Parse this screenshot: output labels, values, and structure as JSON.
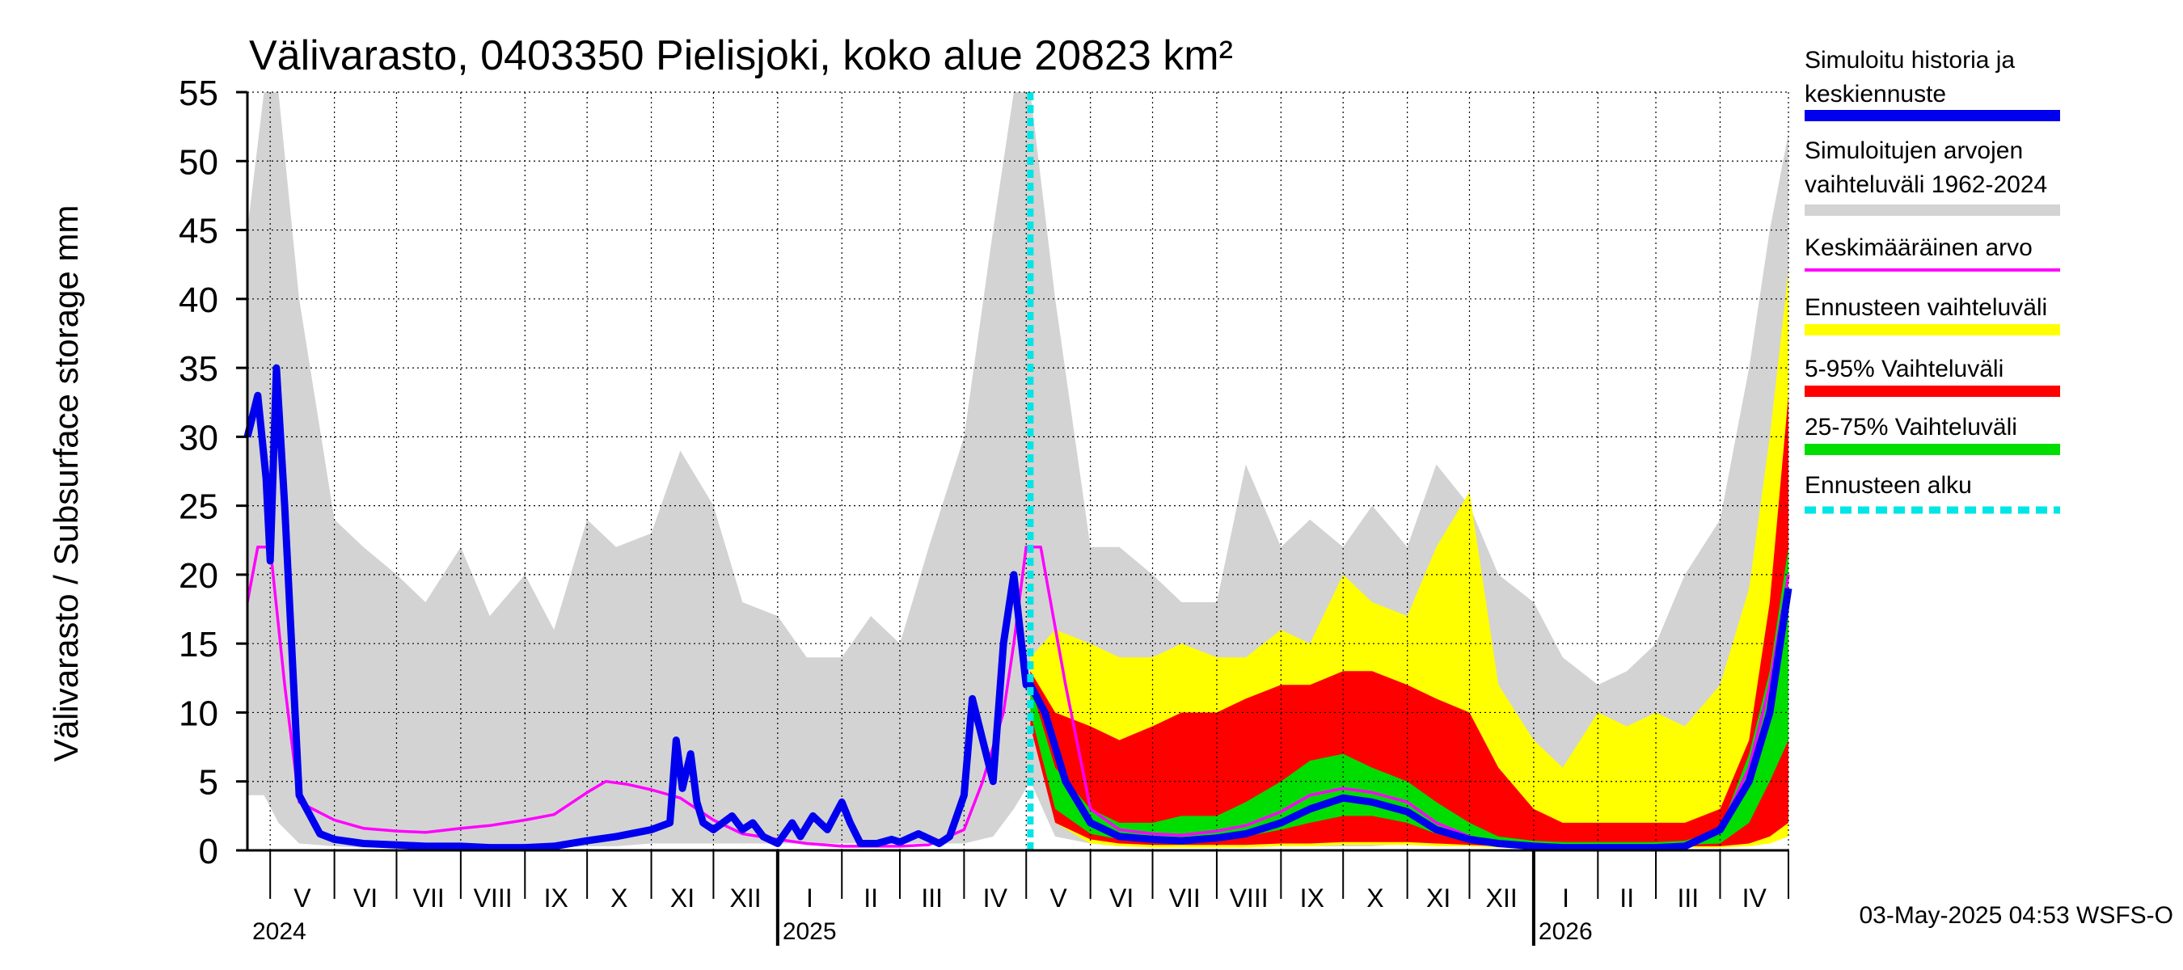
{
  "chart_data": {
    "type": "area",
    "title": "Välivarasto, 0403350 Pielisjoki, koko alue 20823 km²",
    "ylabel": "Välivarasto / Subsurface storage  mm",
    "ylim": [
      0,
      55
    ],
    "yticks": [
      "0",
      "5",
      "10",
      "15",
      "20",
      "25",
      "30",
      "35",
      "40",
      "45",
      "50",
      "55"
    ],
    "grid": true,
    "x_range": [
      "2024-04-20",
      "2026-05-04"
    ],
    "forecast_start": "2025-05-03",
    "months": [
      {
        "label": "V",
        "start": "2024-05-01"
      },
      {
        "label": "VI",
        "start": "2024-06-01"
      },
      {
        "label": "VII",
        "start": "2024-07-01"
      },
      {
        "label": "VIII",
        "start": "2024-08-01"
      },
      {
        "label": "IX",
        "start": "2024-09-01"
      },
      {
        "label": "X",
        "start": "2024-10-01"
      },
      {
        "label": "XI",
        "start": "2024-11-01"
      },
      {
        "label": "XII",
        "start": "2024-12-01"
      },
      {
        "label": "I",
        "start": "2025-01-01"
      },
      {
        "label": "II",
        "start": "2025-02-01"
      },
      {
        "label": "III",
        "start": "2025-03-01"
      },
      {
        "label": "IV",
        "start": "2025-04-01"
      },
      {
        "label": "V",
        "start": "2025-05-01"
      },
      {
        "label": "VI",
        "start": "2025-06-01"
      },
      {
        "label": "VII",
        "start": "2025-07-01"
      },
      {
        "label": "VIII",
        "start": "2025-08-01"
      },
      {
        "label": "IX",
        "start": "2025-09-01"
      },
      {
        "label": "X",
        "start": "2025-10-01"
      },
      {
        "label": "XI",
        "start": "2025-11-01"
      },
      {
        "label": "XII",
        "start": "2025-12-01"
      },
      {
        "label": "I",
        "start": "2026-01-01"
      },
      {
        "label": "II",
        "start": "2026-02-01"
      },
      {
        "label": "III",
        "start": "2026-03-01"
      },
      {
        "label": "IV",
        "start": "2026-04-01"
      }
    ],
    "years": [
      {
        "label": "2024",
        "date": "2024-04-20"
      },
      {
        "label": "2025",
        "date": "2025-01-01"
      },
      {
        "label": "2026",
        "date": "2026-01-01"
      }
    ],
    "series": [
      {
        "name": "Simuloitujen arvojen vaihteluväli 1962-2024",
        "role": "hist_range",
        "color": "#d3d3d3",
        "x": [
          "2024-04-20",
          "2024-04-28",
          "2024-05-05",
          "2024-05-15",
          "2024-06-01",
          "2024-06-15",
          "2024-07-01",
          "2024-07-15",
          "2024-08-01",
          "2024-08-15",
          "2024-09-01",
          "2024-09-15",
          "2024-10-01",
          "2024-10-15",
          "2024-11-01",
          "2024-11-15",
          "2024-12-01",
          "2024-12-15",
          "2025-01-01",
          "2025-01-15",
          "2025-02-01",
          "2025-02-15",
          "2025-03-01",
          "2025-03-15",
          "2025-04-01",
          "2025-04-15",
          "2025-04-25",
          "2025-05-03",
          "2025-05-15",
          "2025-06-01",
          "2025-06-15",
          "2025-07-01",
          "2025-07-15",
          "2025-08-01",
          "2025-08-15",
          "2025-09-01",
          "2025-09-15",
          "2025-10-01",
          "2025-10-15",
          "2025-11-01",
          "2025-11-15",
          "2025-12-01",
          "2025-12-15",
          "2026-01-01",
          "2026-01-15",
          "2026-02-01",
          "2026-02-15",
          "2026-03-01",
          "2026-03-15",
          "2026-04-01",
          "2026-04-15",
          "2026-04-25",
          "2026-05-04"
        ],
        "lower": [
          4,
          4,
          2,
          0.5,
          0.3,
          0.2,
          0.2,
          0.2,
          0.2,
          0.2,
          0.2,
          0.2,
          0.3,
          0.3,
          0.5,
          0.5,
          0.5,
          0.5,
          0.5,
          0.5,
          0.5,
          0.5,
          0.5,
          0.5,
          0.5,
          1,
          3,
          5,
          1,
          0.5,
          0.3,
          0.3,
          0.3,
          0.3,
          0.3,
          0.3,
          0.3,
          0.3,
          0.3,
          0.5,
          0.5,
          0.5,
          0.5,
          0.5,
          0.5,
          0.5,
          0.5,
          0.5,
          0.5,
          0.5,
          1,
          3,
          5
        ],
        "upper": [
          45,
          55,
          55,
          40,
          24,
          22,
          20,
          18,
          22,
          17,
          20,
          16,
          24,
          22,
          23,
          29,
          25,
          18,
          17,
          14,
          14,
          17,
          15,
          22,
          30,
          45,
          55,
          55,
          40,
          22,
          22,
          20,
          18,
          18,
          28,
          22,
          24,
          22,
          25,
          22,
          28,
          25,
          20,
          18,
          14,
          12,
          13,
          15,
          20,
          24,
          35,
          45,
          52
        ]
      },
      {
        "name": "Ennusteen vaihteluväli",
        "role": "forecast_range",
        "color": "#ffff00",
        "x": [
          "2025-05-03",
          "2025-05-15",
          "2025-06-01",
          "2025-06-15",
          "2025-07-01",
          "2025-07-15",
          "2025-08-01",
          "2025-08-15",
          "2025-09-01",
          "2025-09-15",
          "2025-10-01",
          "2025-10-15",
          "2025-11-01",
          "2025-11-15",
          "2025-12-01",
          "2025-12-15",
          "2026-01-01",
          "2026-01-15",
          "2026-02-01",
          "2026-02-15",
          "2026-03-01",
          "2026-03-15",
          "2026-04-01",
          "2026-04-15",
          "2026-04-25",
          "2026-05-04"
        ],
        "lower": [
          10,
          2,
          0.5,
          0.3,
          0.2,
          0.2,
          0.2,
          0.2,
          0.3,
          0.3,
          0.4,
          0.4,
          0.4,
          0.3,
          0.3,
          0.2,
          0.2,
          0.2,
          0.2,
          0.2,
          0.2,
          0.2,
          0.2,
          0.3,
          0.5,
          1
        ],
        "upper": [
          14,
          16,
          15,
          14,
          14,
          15,
          14,
          14,
          16,
          15,
          20,
          18,
          17,
          22,
          26,
          12,
          8,
          6,
          10,
          9,
          10,
          9,
          12,
          19,
          30,
          42
        ]
      },
      {
        "name": "5-95% Vaihteluväli",
        "role": "p5_95",
        "color": "#ff0000",
        "x": [
          "2025-05-03",
          "2025-05-15",
          "2025-06-01",
          "2025-06-15",
          "2025-07-01",
          "2025-07-15",
          "2025-08-01",
          "2025-08-15",
          "2025-09-01",
          "2025-09-15",
          "2025-10-01",
          "2025-10-15",
          "2025-11-01",
          "2025-11-15",
          "2025-12-01",
          "2025-12-15",
          "2026-01-01",
          "2026-01-15",
          "2026-02-01",
          "2026-02-15",
          "2026-03-01",
          "2026-03-15",
          "2026-04-01",
          "2026-04-15",
          "2026-04-25",
          "2026-05-04"
        ],
        "lower": [
          9,
          2,
          0.8,
          0.5,
          0.4,
          0.4,
          0.4,
          0.4,
          0.5,
          0.5,
          0.6,
          0.6,
          0.6,
          0.5,
          0.4,
          0.3,
          0.3,
          0.3,
          0.3,
          0.3,
          0.3,
          0.3,
          0.3,
          0.5,
          1,
          2
        ],
        "upper": [
          13,
          10,
          9,
          8,
          9,
          10,
          10,
          11,
          12,
          12,
          13,
          13,
          12,
          11,
          10,
          6,
          3,
          2,
          2,
          2,
          2,
          2,
          3,
          8,
          18,
          33
        ]
      },
      {
        "name": "25-75% Vaihteluväli",
        "role": "p25_75",
        "color": "#00dd00",
        "x": [
          "2025-05-03",
          "2025-05-15",
          "2025-06-01",
          "2025-06-15",
          "2025-07-01",
          "2025-07-15",
          "2025-08-01",
          "2025-08-15",
          "2025-09-01",
          "2025-09-15",
          "2025-10-01",
          "2025-10-15",
          "2025-11-01",
          "2025-11-15",
          "2025-12-01",
          "2025-12-15",
          "2026-01-01",
          "2026-01-15",
          "2026-02-01",
          "2026-02-15",
          "2026-03-01",
          "2026-03-15",
          "2026-04-01",
          "2026-04-15",
          "2026-04-25",
          "2026-05-04"
        ],
        "lower": [
          10,
          3,
          1.2,
          0.8,
          0.7,
          0.8,
          0.8,
          1,
          1.5,
          2,
          2.5,
          2.5,
          2,
          1.2,
          0.8,
          0.5,
          0.4,
          0.4,
          0.4,
          0.4,
          0.4,
          0.4,
          0.5,
          2,
          5,
          8
        ],
        "upper": [
          12,
          6,
          3,
          2,
          2,
          2.5,
          2.5,
          3.5,
          5,
          6.5,
          7,
          6,
          5,
          3.5,
          2,
          1,
          0.7,
          0.6,
          0.6,
          0.6,
          0.6,
          0.7,
          1.5,
          7,
          13,
          22
        ]
      },
      {
        "name": "Keskimääräinen arvo",
        "role": "mean",
        "color": "#ff00ff",
        "x": [
          "2024-04-20",
          "2024-04-25",
          "2024-05-01",
          "2024-05-08",
          "2024-05-15",
          "2024-06-01",
          "2024-06-15",
          "2024-07-01",
          "2024-07-15",
          "2024-08-01",
          "2024-08-15",
          "2024-09-01",
          "2024-09-15",
          "2024-10-01",
          "2024-10-10",
          "2024-10-20",
          "2024-11-01",
          "2024-11-15",
          "2024-12-01",
          "2024-12-15",
          "2025-01-01",
          "2025-01-15",
          "2025-02-01",
          "2025-02-15",
          "2025-03-01",
          "2025-03-15",
          "2025-04-01",
          "2025-04-10",
          "2025-04-20",
          "2025-04-25",
          "2025-05-01",
          "2025-05-08",
          "2025-05-20",
          "2025-06-01",
          "2025-06-15",
          "2025-07-01",
          "2025-07-15",
          "2025-08-01",
          "2025-08-15",
          "2025-09-01",
          "2025-09-15",
          "2025-10-01",
          "2025-10-15",
          "2025-11-01",
          "2025-11-15",
          "2025-12-01",
          "2025-12-15",
          "2026-01-01",
          "2026-01-15",
          "2026-02-01",
          "2026-02-15",
          "2026-03-01",
          "2026-03-15",
          "2026-04-01",
          "2026-04-15",
          "2026-04-25",
          "2026-05-04"
        ],
        "y": [
          18,
          22,
          22,
          12,
          3.5,
          2.2,
          1.6,
          1.4,
          1.3,
          1.6,
          1.8,
          2.2,
          2.6,
          4.2,
          5,
          4.8,
          4.4,
          3.8,
          2.2,
          1.2,
          0.8,
          0.5,
          0.3,
          0.3,
          0.3,
          0.4,
          1.5,
          5,
          10,
          15,
          22,
          22,
          12,
          3,
          1.5,
          1.2,
          1.1,
          1.4,
          1.8,
          2.8,
          4,
          4.5,
          4.2,
          3.5,
          2,
          1,
          0.5,
          0.3,
          0.2,
          0.2,
          0.2,
          0.2,
          0.3,
          1.5,
          6,
          12,
          20
        ]
      },
      {
        "name": "Simuloitu historia ja keskiennuste",
        "role": "simulated",
        "color": "#0000ee",
        "x": [
          "2024-04-20",
          "2024-04-25",
          "2024-04-29",
          "2024-05-01",
          "2024-05-04",
          "2024-05-08",
          "2024-05-15",
          "2024-05-25",
          "2024-06-01",
          "2024-06-15",
          "2024-07-01",
          "2024-07-15",
          "2024-08-01",
          "2024-08-15",
          "2024-09-01",
          "2024-09-15",
          "2024-10-01",
          "2024-10-15",
          "2024-11-01",
          "2024-11-10",
          "2024-11-13",
          "2024-11-16",
          "2024-11-20",
          "2024-11-23",
          "2024-11-26",
          "2024-12-01",
          "2024-12-10",
          "2024-12-15",
          "2024-12-20",
          "2024-12-25",
          "2025-01-01",
          "2025-01-08",
          "2025-01-12",
          "2025-01-18",
          "2025-01-25",
          "2025-02-01",
          "2025-02-05",
          "2025-02-10",
          "2025-02-18",
          "2025-02-25",
          "2025-03-01",
          "2025-03-10",
          "2025-03-20",
          "2025-03-25",
          "2025-04-01",
          "2025-04-05",
          "2025-04-10",
          "2025-04-15",
          "2025-04-20",
          "2025-04-25",
          "2025-05-01",
          "2025-05-03",
          "2025-05-10",
          "2025-05-20",
          "2025-06-01",
          "2025-06-15",
          "2025-07-01",
          "2025-07-15",
          "2025-08-01",
          "2025-08-15",
          "2025-09-01",
          "2025-09-15",
          "2025-10-01",
          "2025-10-15",
          "2025-11-01",
          "2025-11-15",
          "2025-12-01",
          "2025-12-15",
          "2026-01-01",
          "2026-01-15",
          "2026-02-01",
          "2026-02-15",
          "2026-03-01",
          "2026-03-15",
          "2026-04-01",
          "2026-04-15",
          "2026-04-25",
          "2026-05-04"
        ],
        "y": [
          30,
          33,
          27,
          21,
          35,
          25,
          4,
          1.2,
          0.8,
          0.5,
          0.4,
          0.3,
          0.3,
          0.2,
          0.2,
          0.3,
          0.7,
          1,
          1.5,
          2,
          8,
          4.5,
          7,
          3.5,
          2,
          1.5,
          2.5,
          1.5,
          2,
          1,
          0.5,
          2,
          1,
          2.5,
          1.5,
          3.5,
          2,
          0.5,
          0.5,
          0.8,
          0.6,
          1.2,
          0.5,
          1,
          4,
          11,
          8,
          5,
          15,
          20,
          12,
          12,
          10,
          5,
          2,
          1,
          0.8,
          0.7,
          0.9,
          1.2,
          2,
          3,
          3.8,
          3.5,
          2.8,
          1.5,
          0.8,
          0.5,
          0.3,
          0.2,
          0.2,
          0.2,
          0.2,
          0.3,
          1.5,
          5,
          10,
          19
        ]
      }
    ],
    "legend": [
      {
        "label": "Simuloitu historia ja\nkeskiennuste",
        "color": "#0000ee",
        "style": "thick"
      },
      {
        "label": "Simuloitujen arvojen\nvaihteluväli 1962-2024",
        "color": "#d3d3d3",
        "style": "thick"
      },
      {
        "label": "Keskimääräinen arvo",
        "color": "#ff00ff",
        "style": "thin"
      },
      {
        "label": "Ennusteen vaihteluväli",
        "color": "#ffff00",
        "style": "thick"
      },
      {
        "label": "5-95% Vaihteluväli",
        "color": "#ff0000",
        "style": "thick"
      },
      {
        "label": "25-75% Vaihteluväli",
        "color": "#00dd00",
        "style": "thick"
      },
      {
        "label": "Ennusteen alku",
        "color": "#00e5e5",
        "style": "dashed"
      }
    ],
    "legend_position": "right"
  },
  "footer": "03-May-2025 04:53 WSFS-O"
}
